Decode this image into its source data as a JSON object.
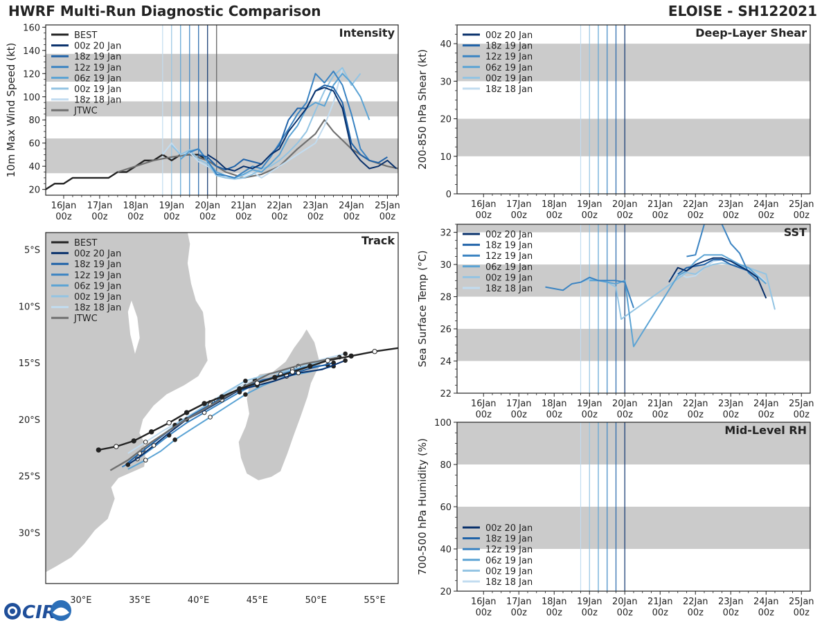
{
  "header": {
    "title_left": "HWRF Multi-Run Diagnostic Comparison",
    "title_right": "ELOISE - SH122021"
  },
  "colors": {
    "runs": [
      "#08306b",
      "#1f62a8",
      "#3a83c2",
      "#5ba3d4",
      "#93c4e3",
      "#c2dcf0"
    ],
    "best": "#222222",
    "jtwc": "#707070",
    "band": "#cbcbcb",
    "land": "#c8c8c8"
  },
  "run_labels": [
    "00z 20 Jan",
    "18z 19 Jan",
    "12z 19 Jan",
    "06z 19 Jan",
    "00z 19 Jan",
    "18z 18 Jan"
  ],
  "best_label": "BEST",
  "jtwc_label": "JTWC",
  "time_axis": {
    "day_labels": [
      "16Jan",
      "17Jan",
      "18Jan",
      "19Jan",
      "20Jan",
      "21Jan",
      "22Jan",
      "23Jan",
      "24Jan",
      "25Jan"
    ],
    "hour_label": "00z"
  },
  "chart_data": [
    {
      "type": "line",
      "title": "Intensity",
      "ylabel": "10m Max Wind Speed (kt)",
      "x_units": "days since 00z 16 Jan",
      "xlim": [
        -0.5,
        9.3
      ],
      "ylim": [
        15,
        162
      ],
      "yticks": [
        20,
        40,
        60,
        80,
        100,
        120,
        140,
        160
      ],
      "gray_bands": [
        [
          34,
          64
        ],
        [
          83,
          96
        ],
        [
          113,
          137
        ]
      ],
      "run_times": [
        4.0,
        3.75,
        3.5,
        3.25,
        3.0,
        2.75
      ],
      "jtwc_time": 4.25,
      "best": {
        "name": "BEST",
        "x": [
          -0.5,
          -0.25,
          0,
          0.25,
          0.5,
          0.75,
          1,
          1.25,
          1.5,
          1.75,
          2,
          2.25,
          2.5,
          2.75,
          3,
          3.25,
          3.5,
          3.75,
          4
        ],
        "y": [
          20,
          25,
          25,
          30,
          30,
          30,
          30,
          30,
          35,
          35,
          40,
          45,
          45,
          50,
          45,
          50,
          50,
          50,
          45
        ]
      },
      "jtwc": {
        "name": "JTWC",
        "x": [
          1.5,
          2,
          2.5,
          3,
          3.5,
          4,
          4.25,
          4.5,
          5,
          5.5,
          6,
          6.5,
          7,
          7.25,
          7.5,
          8,
          8.5,
          9,
          9.3
        ],
        "y": [
          35,
          40,
          45,
          48,
          50,
          45,
          40,
          35,
          30,
          33,
          40,
          55,
          68,
          80,
          70,
          55,
          45,
          40,
          38
        ]
      },
      "series": [
        {
          "name": "00z 20 Jan",
          "x": [
            4,
            4.25,
            4.5,
            4.75,
            5,
            5.25,
            5.5,
            5.75,
            6,
            6.25,
            6.5,
            6.75,
            7,
            7.25,
            7.5,
            7.75,
            8,
            8.25,
            8.5,
            8.75,
            9,
            9.25
          ],
          "y": [
            50,
            45,
            38,
            36,
            40,
            38,
            42,
            50,
            55,
            70,
            80,
            90,
            105,
            108,
            105,
            90,
            55,
            45,
            38,
            40,
            45,
            38
          ]
        },
        {
          "name": "18z 19 Jan",
          "x": [
            3.75,
            4,
            4.25,
            4.5,
            4.75,
            5,
            5.25,
            5.5,
            5.75,
            6,
            6.25,
            6.5,
            6.75,
            7,
            7.25,
            7.5,
            7.75,
            8,
            8.25,
            8.5,
            8.75,
            9
          ],
          "y": [
            50,
            48,
            40,
            37,
            40,
            46,
            44,
            42,
            50,
            58,
            80,
            90,
            90,
            105,
            110,
            108,
            95,
            60,
            50,
            45,
            43,
            48
          ]
        },
        {
          "name": "12z 19 Jan",
          "x": [
            3.5,
            3.75,
            4,
            4.25,
            4.5,
            4.75,
            5,
            5.25,
            5.5,
            5.75,
            6,
            6.25,
            6.5,
            6.75,
            7,
            7.25,
            7.5,
            7.75,
            8,
            8.25,
            8.5
          ],
          "y": [
            52,
            55,
            45,
            33,
            32,
            30,
            35,
            40,
            38,
            48,
            60,
            72,
            85,
            95,
            120,
            112,
            122,
            110,
            85,
            55,
            45
          ]
        },
        {
          "name": "06z 19 Jan",
          "x": [
            3.25,
            3.5,
            3.75,
            4,
            4.25,
            4.5,
            4.75,
            5,
            5.25,
            5.5,
            5.75,
            6,
            6.25,
            6.5,
            6.75,
            7,
            7.25,
            7.5,
            7.75,
            8,
            8.25,
            8.5
          ],
          "y": [
            46,
            53,
            55,
            44,
            35,
            32,
            30,
            33,
            37,
            35,
            42,
            50,
            65,
            75,
            90,
            95,
            92,
            110,
            120,
            112,
            100,
            80
          ]
        },
        {
          "name": "00z 19 Jan",
          "x": [
            3,
            3.25,
            3.5,
            3.75,
            4,
            4.25,
            4.5,
            4.75,
            5,
            5.25,
            5.5,
            5.75,
            6,
            6.25,
            6.5,
            6.75,
            7,
            7.25,
            7.5,
            7.75,
            8,
            8.25
          ],
          "y": [
            58,
            50,
            54,
            46,
            42,
            32,
            30,
            29,
            30,
            33,
            38,
            40,
            45,
            52,
            60,
            70,
            88,
            105,
            118,
            125,
            110,
            120
          ]
        },
        {
          "name": "18z 18 Jan",
          "x": [
            2.75,
            3,
            3.25,
            3.5,
            3.75,
            4,
            4.25,
            4.5,
            4.75,
            5,
            5.25,
            5.5,
            5.75,
            6,
            6.25,
            6.5,
            6.75,
            7,
            7.25,
            7.5,
            7.75
          ],
          "y": [
            50,
            60,
            50,
            52,
            44,
            40,
            35,
            30,
            30,
            32,
            35,
            30,
            35,
            40,
            45,
            50,
            55,
            60,
            75,
            95,
            125
          ]
        }
      ]
    },
    {
      "type": "line",
      "title": "Deep-Layer Shear",
      "ylabel": "200-850 hPa Shear (kt)",
      "xlim": [
        -0.75,
        9.25
      ],
      "ylim": [
        0,
        45
      ],
      "yticks": [
        0,
        10,
        20,
        30,
        40
      ],
      "gray_bands": [
        [
          10,
          20
        ],
        [
          30,
          40
        ]
      ],
      "run_times": [
        4.0,
        3.75,
        3.5,
        3.25,
        3.0,
        2.75
      ],
      "series": []
    },
    {
      "type": "line",
      "title": "SST",
      "ylabel": "Sea Surface Temp (°C)",
      "xlim": [
        -0.75,
        9.25
      ],
      "ylim": [
        22,
        32.5
      ],
      "yticks": [
        22,
        24,
        26,
        28,
        30,
        32
      ],
      "gray_bands": [
        [
          24,
          26
        ],
        [
          28,
          30
        ],
        [
          32,
          32.5
        ]
      ],
      "run_times": [
        4.0,
        3.75,
        3.5,
        3.25,
        3.0,
        2.75
      ],
      "series": [
        {
          "name": "00z 20 Jan",
          "x": [
            5.25,
            5.5,
            5.75,
            6,
            6.25,
            6.5,
            6.75,
            7,
            7.25,
            7.5,
            7.75,
            8
          ],
          "y": [
            28.9,
            29.8,
            29.6,
            30.0,
            30.2,
            30.4,
            30.4,
            30.2,
            29.9,
            29.6,
            29.2,
            27.9
          ]
        },
        {
          "name": "18z 19 Jan",
          "x": [
            5.5,
            5.75,
            6,
            6.25,
            6.5,
            6.75,
            7,
            7.25,
            7.5,
            7.75
          ],
          "y": [
            29.4,
            29.8,
            29.9,
            30.0,
            30.3,
            30.3,
            30.0,
            29.8,
            29.6,
            29.2
          ]
        },
        {
          "name": "12z 19 Jan",
          "x": [
            1.75,
            2,
            2.25,
            2.5,
            2.75,
            3,
            3.25,
            3.5,
            3.75,
            4,
            4.25,
            4.5,
            4.75,
            5,
            5.25,
            5.5,
            5.75,
            6,
            6.25,
            6.5,
            6.75,
            7,
            7.25,
            7.5,
            7.75
          ],
          "y": [
            28.6,
            28.5,
            28.4,
            28.8,
            28.9,
            29.2,
            29.0,
            29.0,
            29.0,
            28.9,
            27.3,
            null,
            null,
            null,
            null,
            null,
            30.5,
            30.6,
            32.5,
            null,
            32.5,
            31.3,
            30.7,
            29.5,
            29.0
          ]
        },
        {
          "name": "06z 19 Jan",
          "x": [
            3.0,
            3.25,
            3.5,
            3.75,
            4.0,
            4.25,
            5.5,
            5.75,
            6,
            6.25,
            6.5,
            6.75,
            7,
            7.25,
            7.5,
            7.75,
            8
          ],
          "y": [
            29.0,
            29.0,
            28.9,
            28.8,
            29.0,
            24.9,
            29.3,
            29.6,
            30.2,
            30.6,
            30.6,
            30.6,
            30.3,
            30.0,
            29.8,
            29.3,
            28.8
          ]
        },
        {
          "name": "00z 19 Jan",
          "x": [
            2.75,
            3,
            3.25,
            3.5,
            3.75,
            3.9,
            5.75,
            6,
            6.25,
            6.5,
            6.75,
            7,
            7.25,
            7.5,
            7.75,
            8,
            8.25
          ],
          "y": [
            28.9,
            29.1,
            29.0,
            28.9,
            28.6,
            26.6,
            29.5,
            29.4,
            29.8,
            30.0,
            30.1,
            30.0,
            29.9,
            29.8,
            29.6,
            29.4,
            27.2
          ]
        },
        {
          "name": "18z 18 Jan",
          "x": [
            5.25,
            5.5,
            5.75,
            6,
            6.25,
            6.5,
            6.75,
            7,
            7.25,
            7.5,
            7.75,
            8
          ],
          "y": [
            29.1,
            29.5,
            29.2,
            29.3,
            29.8,
            30.2,
            30.3,
            30.2,
            30.0,
            29.7,
            29.4,
            28.9
          ]
        }
      ]
    },
    {
      "type": "line",
      "title": "Mid-Level RH",
      "ylabel": "700-500 hPa Humidity (%)",
      "xlim": [
        -0.75,
        9.25
      ],
      "ylim": [
        20,
        100
      ],
      "yticks": [
        20,
        40,
        60,
        80,
        100
      ],
      "gray_bands": [
        [
          40,
          60
        ],
        [
          80,
          100
        ]
      ],
      "run_times": [
        4.0,
        3.75,
        3.5,
        3.25,
        3.0,
        2.75
      ],
      "series": []
    },
    {
      "type": "line",
      "title": "Track",
      "subtype": "map",
      "xlim_lon": [
        27,
        57
      ],
      "ylim_lat": [
        -34.5,
        -3.5
      ],
      "lon_ticks": [
        30,
        35,
        40,
        45,
        50,
        55
      ],
      "lon_labels": [
        "30°E",
        "35°E",
        "40°E",
        "45°E",
        "50°E",
        "55°E"
      ],
      "lat_ticks": [
        -5,
        -10,
        -15,
        -20,
        -25,
        -30
      ],
      "lat_labels": [
        "5°S",
        "10°S",
        "15°S",
        "20°S",
        "25°S",
        "30°S"
      ],
      "best": {
        "name": "BEST",
        "lon": [
          57,
          55.0,
          53.0,
          51.0,
          49.5,
          48.0,
          46.5,
          45.0,
          43.5,
          42.0,
          40.5,
          39.0,
          37.5,
          36.0,
          34.5,
          33.0,
          31.5
        ],
        "lat": [
          -13.7,
          -14.0,
          -14.4,
          -14.8,
          -15.3,
          -15.8,
          -16.3,
          -16.8,
          -17.3,
          -18.0,
          -18.6,
          -19.4,
          -20.3,
          -21.1,
          -21.9,
          -22.4,
          -22.7
        ],
        "markers": [
          "open",
          "open",
          "filled",
          "open",
          "filled",
          "open",
          "filled",
          "open",
          "filled",
          "filled",
          "filled",
          "filled",
          "open",
          "filled",
          "filled",
          "open",
          "filled"
        ]
      },
      "jtwc": {
        "name": "JTWC",
        "lon": [
          52.0,
          49.0,
          46.0,
          43.5,
          41.0,
          38.5,
          36.0,
          34.0,
          32.5
        ],
        "lat": [
          -14.5,
          -15.1,
          -16.0,
          -17.3,
          -18.8,
          -20.3,
          -22.0,
          -23.6,
          -24.5
        ]
      },
      "series": [
        {
          "name": "00z 20 Jan",
          "lon": [
            52.5,
            50.5,
            48.5,
            46.5,
            45.0,
            43.5,
            42.0,
            40.5,
            39.0,
            37.5,
            36.2,
            35.0,
            34.0
          ],
          "lat": [
            -14.8,
            -15.6,
            -15.9,
            -16.6,
            -17.0,
            -17.4,
            -18.3,
            -19.2,
            -20.0,
            -21.2,
            -22.3,
            -23.3,
            -24.0
          ]
        },
        {
          "name": "18z 19 Jan",
          "lon": [
            51.5,
            49.5,
            47.5,
            45.5,
            44.0,
            42.5,
            41.0,
            39.5,
            38.0,
            36.5,
            35.0,
            33.8
          ],
          "lat": [
            -15.0,
            -15.5,
            -16.1,
            -16.5,
            -17.1,
            -17.8,
            -18.7,
            -19.6,
            -20.6,
            -21.8,
            -23.0,
            -24.0
          ]
        },
        {
          "name": "12z 19 Jan",
          "lon": [
            51.0,
            49.0,
            47.0,
            45.0,
            43.5,
            42.0,
            40.5,
            39.0,
            37.5,
            36.0,
            34.8,
            33.5
          ],
          "lat": [
            -15.2,
            -15.4,
            -16.0,
            -16.8,
            -17.6,
            -18.5,
            -19.4,
            -20.3,
            -21.4,
            -22.6,
            -23.5,
            -24.2
          ]
        },
        {
          "name": "06z 19 Jan",
          "lon": [
            51.5,
            49.5,
            47.5,
            45.5,
            44.0,
            42.5,
            41.0,
            39.5,
            38.0,
            36.8,
            35.5,
            34.0
          ],
          "lat": [
            -15.3,
            -15.8,
            -16.2,
            -17.0,
            -17.8,
            -18.8,
            -19.8,
            -20.8,
            -21.8,
            -22.8,
            -23.6,
            -24.4
          ]
        },
        {
          "name": "00z 19 Jan",
          "lon": [
            52.0,
            50.0,
            48.0,
            46.0,
            44.0,
            42.5,
            41.0,
            39.5,
            38.0,
            36.8,
            35.3,
            34.0
          ],
          "lat": [
            -14.5,
            -15.0,
            -15.6,
            -16.0,
            -16.6,
            -17.5,
            -18.5,
            -19.5,
            -20.5,
            -21.5,
            -22.7,
            -23.8
          ]
        },
        {
          "name": "18z 18 Jan",
          "lon": [
            52.5,
            50.5,
            48.5,
            46.5,
            44.8,
            43.0,
            41.5,
            40.0,
            38.5,
            37.0,
            35.5,
            34.0
          ],
          "lat": [
            -14.2,
            -14.7,
            -15.3,
            -15.9,
            -16.5,
            -17.3,
            -18.3,
            -19.2,
            -20.1,
            -21.0,
            -22.0,
            -23.0
          ]
        }
      ]
    }
  ],
  "logo": {
    "text": "CIRA"
  }
}
